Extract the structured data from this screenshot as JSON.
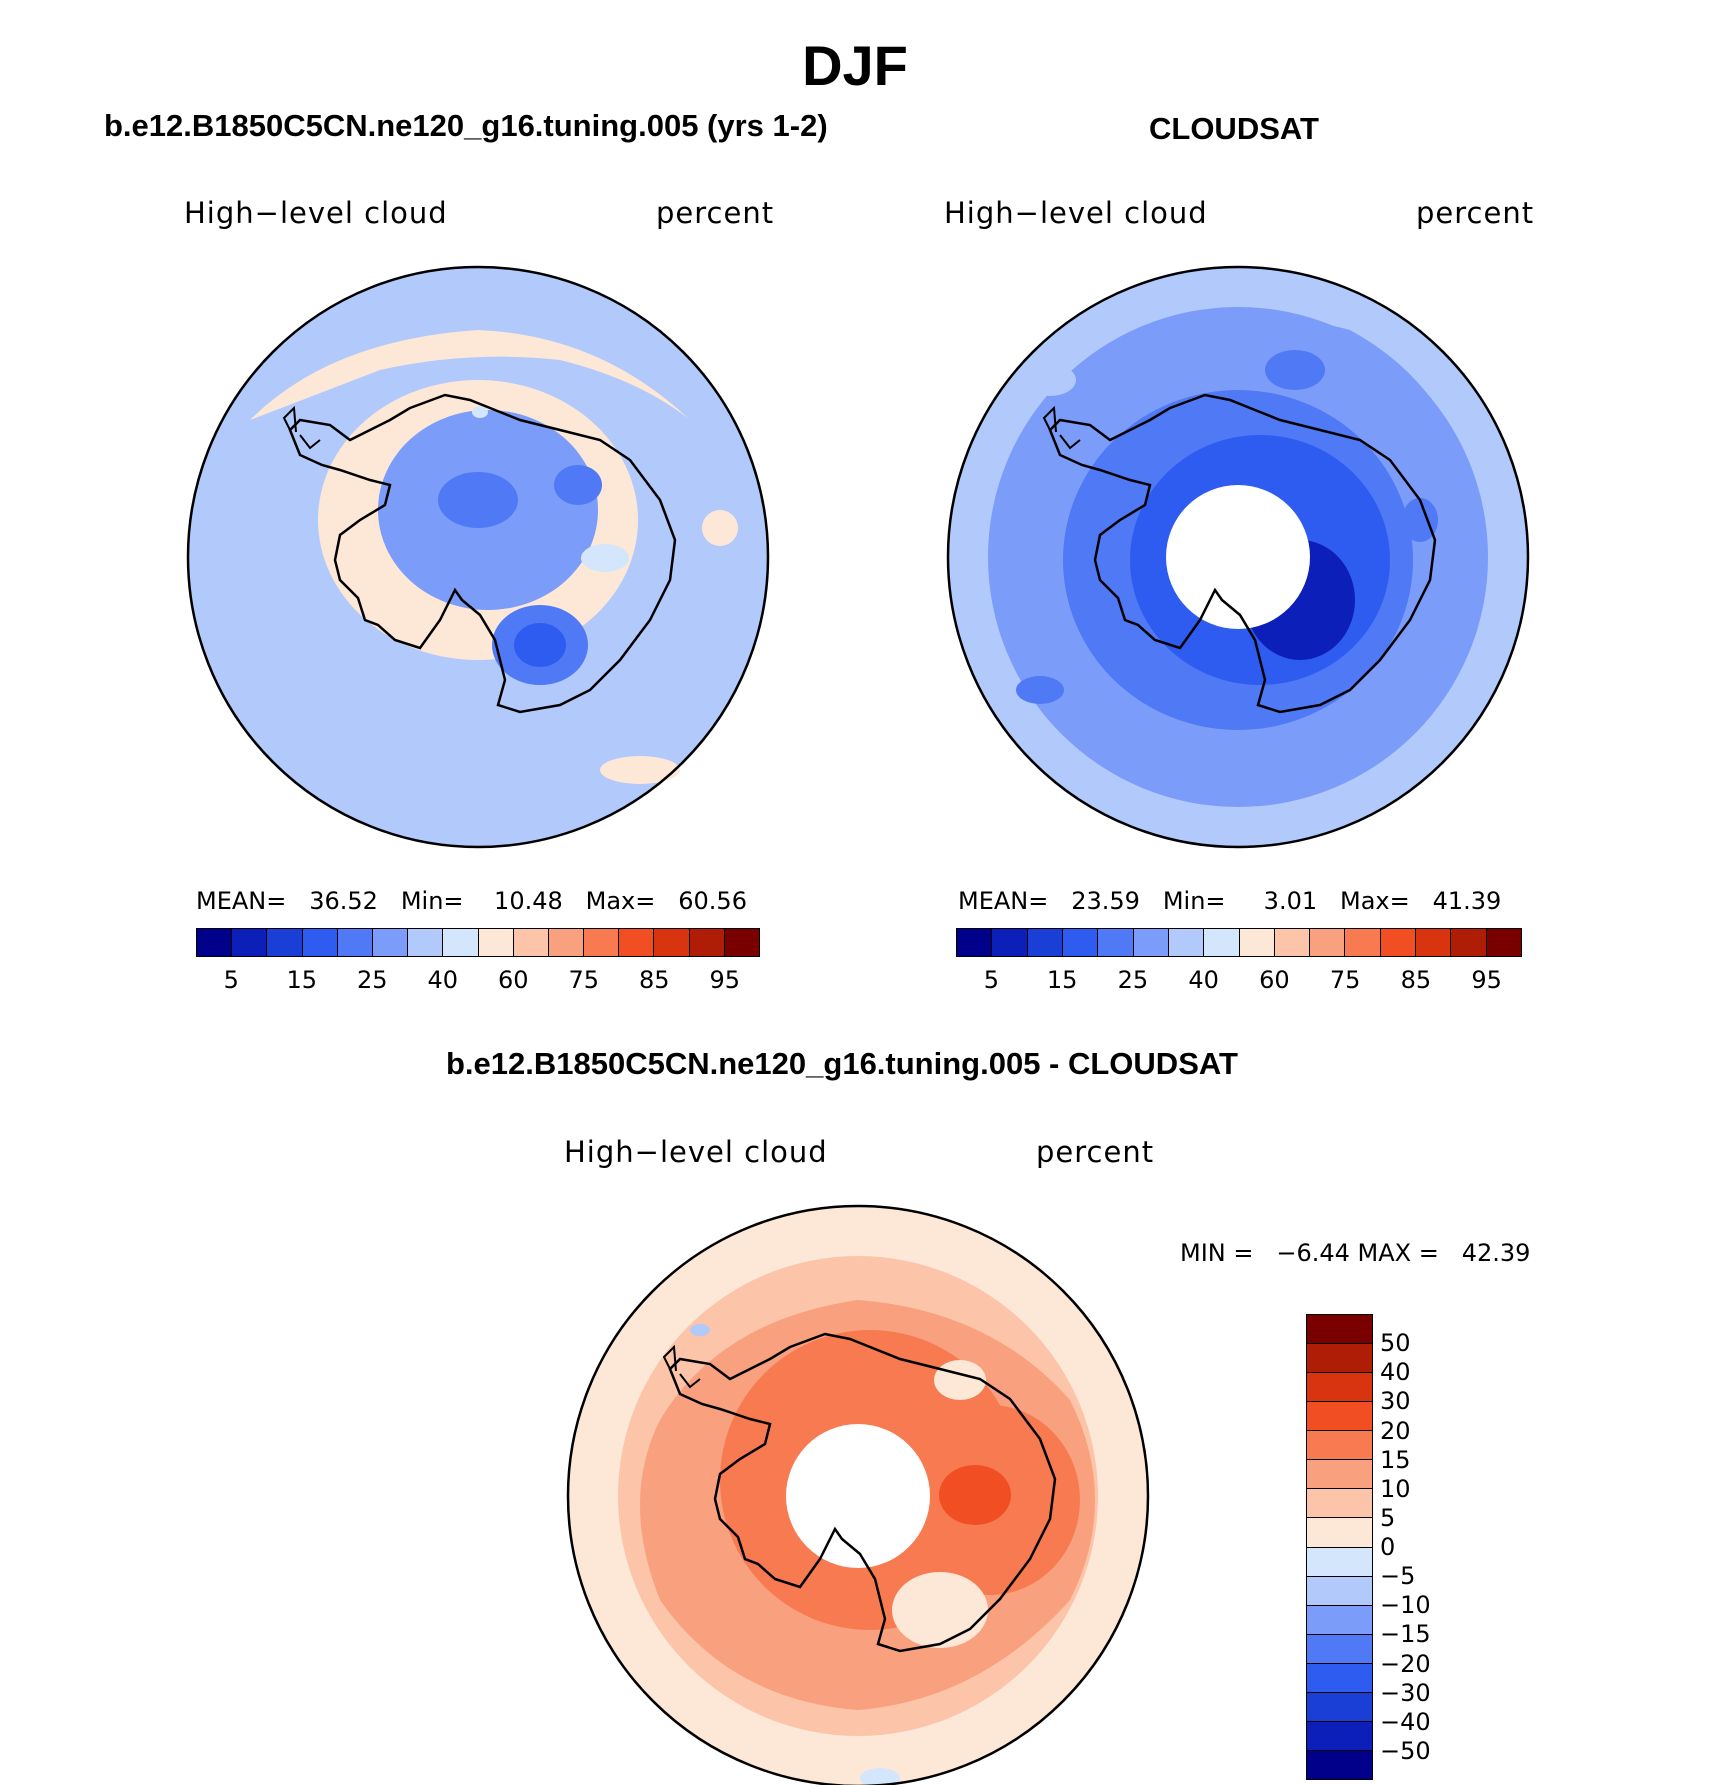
{
  "title": "DJF",
  "palettes": {
    "abs": [
      "#00008b",
      "#0c1fb8",
      "#1a3fd6",
      "#2f5cf0",
      "#4f79f5",
      "#7b9cf8",
      "#b2c9fb",
      "#d4e6fb",
      "#fde8d8",
      "#fcc4a8",
      "#f9a07e",
      "#f77a50",
      "#f24e23",
      "#d93410",
      "#b01d07",
      "#7a0000"
    ],
    "diff": [
      "#00008b",
      "#0c1fb8",
      "#1a3fd6",
      "#2f5cf0",
      "#4f79f5",
      "#7b9cf8",
      "#b2c9fb",
      "#d4e6fb",
      "#fde8d8",
      "#fcc4a8",
      "#f9a07e",
      "#f77a50",
      "#f24e23",
      "#d93410",
      "#b01d07",
      "#7a0000"
    ]
  },
  "panels": [
    {
      "title": "b.e12.B1850C5CN.ne120_g16.tuning.005 (yrs 1-2)",
      "variable": "High−level cloud",
      "units": "percent",
      "stats": "MEAN=   36.52   Min=    10.48   Max=   60.56",
      "colorbar_labels": [
        "5",
        "15",
        "25",
        "40",
        "60",
        "75",
        "85",
        "95"
      ],
      "fill_levels": [
        6,
        5,
        4,
        3,
        7,
        8
      ]
    },
    {
      "title": "CLOUDSAT",
      "variable": "High−level cloud",
      "units": "percent",
      "stats": "MEAN=   23.59   Min=     3.01   Max=   41.39",
      "colorbar_labels": [
        "5",
        "15",
        "25",
        "40",
        "60",
        "75",
        "85",
        "95"
      ],
      "fill_levels": [
        6,
        5,
        4,
        3,
        2,
        1
      ]
    }
  ],
  "diff_panel": {
    "title": "b.e12.B1850C5CN.ne120_g16.tuning.005 - CLOUDSAT",
    "variable": "High−level cloud",
    "units": "percent",
    "stats": "MIN =   −6.44 MAX =   42.39",
    "colorbar_labels": [
      "50",
      "40",
      "30",
      "20",
      "15",
      "10",
      "5",
      "0",
      "−5",
      "−10",
      "−15",
      "−20",
      "−30",
      "−40",
      "−50"
    ],
    "fill_levels": [
      8,
      9,
      10,
      11,
      12,
      13
    ]
  }
}
